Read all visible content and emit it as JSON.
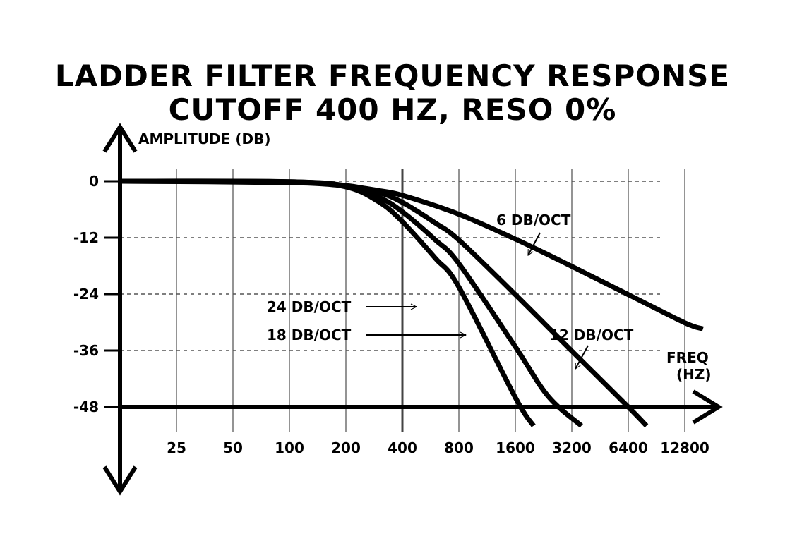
{
  "chart_data": {
    "type": "line",
    "title": "LADDER FILTER FREQUENCY RESPONSE",
    "subtitle": "CUTOFF 400 HZ, RESO 0%",
    "ylabel": "AMPLITUDE (DB)",
    "xlabel_line1": "FREQ",
    "xlabel_line2": "(HZ)",
    "x_scale": "log2",
    "x_ticks": [
      25,
      50,
      100,
      200,
      400,
      800,
      1600,
      3200,
      6400,
      12800
    ],
    "x_tick_labels": [
      "25",
      "50",
      "100",
      "200",
      "400",
      "800",
      "1600",
      "3200",
      "6400",
      "12800"
    ],
    "y_ticks": [
      0,
      -12,
      -24,
      -36,
      -48
    ],
    "y_tick_labels": [
      "0",
      "-12",
      "-24",
      "-36",
      "-48"
    ],
    "xlim": [
      12.5,
      12800
    ],
    "ylim": [
      -48,
      0
    ],
    "grid": true,
    "cutoff_hz": 400,
    "series": [
      {
        "name": "6 DB/OCT",
        "slope_db_per_oct": 6,
        "x": [
          12.5,
          100,
          200,
          300,
          400,
          800,
          1600,
          3200,
          6400,
          12800,
          16000
        ],
        "y": [
          0,
          -0.3,
          -1.0,
          -2.0,
          -3.0,
          -7.0,
          -12.3,
          -18.1,
          -24.1,
          -30.1,
          -31.4
        ]
      },
      {
        "name": "12 DB/OCT",
        "slope_db_per_oct": 12,
        "x": [
          12.5,
          100,
          200,
          300,
          400,
          600,
          800,
          1600,
          3200,
          6400,
          8000
        ],
        "y": [
          0,
          -0.2,
          -0.9,
          -2.4,
          -4.5,
          -8.9,
          -12.5,
          -24.1,
          -36.1,
          -48.0,
          -52.0
        ]
      },
      {
        "name": "18 DB/OCT",
        "slope_db_per_oct": 18,
        "x": [
          12.5,
          100,
          200,
          300,
          400,
          600,
          800,
          1600,
          2400,
          3600
        ],
        "y": [
          0,
          -0.1,
          -1.0,
          -3.4,
          -6.5,
          -12.5,
          -17.5,
          -35.2,
          -45.8,
          -52.0
        ]
      },
      {
        "name": "24 DB/OCT",
        "slope_db_per_oct": 24,
        "x": [
          12.5,
          100,
          200,
          300,
          400,
          600,
          800,
          1600,
          2000
        ],
        "y": [
          0,
          -0.1,
          -1.2,
          -4.4,
          -8.6,
          -16.4,
          -22.5,
          -46.0,
          -52.0
        ]
      }
    ],
    "annotations": {
      "s6": "6 DB/OCT",
      "s12": "12 DB/OCT",
      "s18": "18 DB/OCT",
      "s24": "24 DB/OCT"
    },
    "line_color": "#000000",
    "grid_color": "#555555"
  }
}
